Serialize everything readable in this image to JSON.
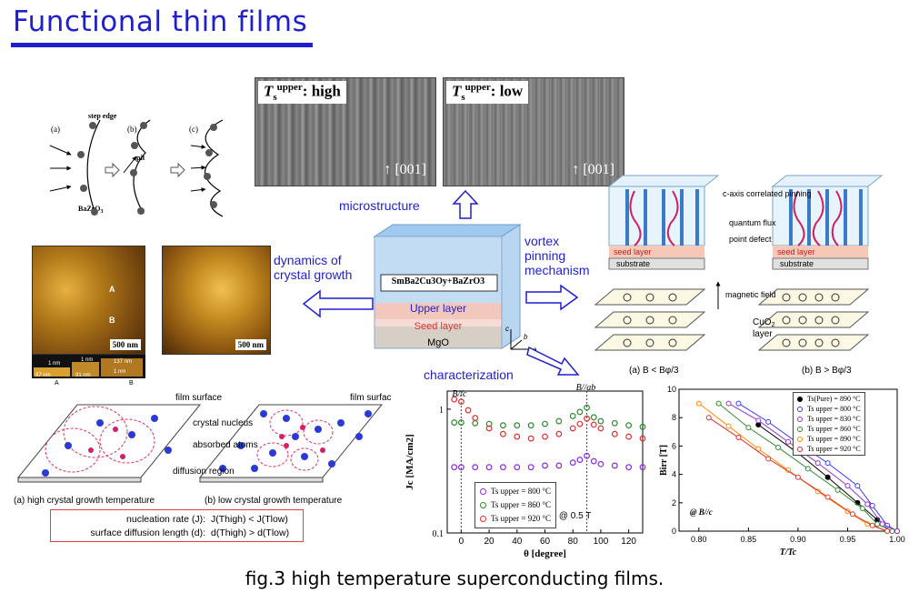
{
  "title": "Functional thin films",
  "caption": "fig.3 high temperature superconducting films.",
  "growth_sketch": {
    "labels": [
      "(a)",
      "(b)",
      "(c)"
    ],
    "step_edge": "step edge",
    "pit": "pit",
    "bzo": "BaZrO",
    "bzo_sub": "3"
  },
  "tem": {
    "left_label_main": "T",
    "left_label_sub": "s",
    "left_label_sup": "upper",
    "left_label_rest": ": high",
    "right_label_main": "T",
    "right_label_sub": "s",
    "right_label_sup": "upper",
    "right_label_rest": ": low",
    "direction": "[001]"
  },
  "arrows": {
    "microstructure": "microstructure",
    "dynamics": "dynamics of crystal growth",
    "dynamics_line1": "dynamics of",
    "dynamics_line2": "crystal growth",
    "vortex_line1": "vortex",
    "vortex_line2": "pinning",
    "vortex_line3": "mechanism",
    "characterization": "characterization"
  },
  "film_block": {
    "composition": "SmBa2Cu3Oy+BaZrO3",
    "upper": "Upper layer",
    "seed": "Seed layer",
    "substrate": "MgO",
    "axes": [
      "c",
      "b",
      "a"
    ]
  },
  "afm": {
    "scale_left": "500 nm",
    "scale_right": "500 nm",
    "pt_a": "A",
    "pt_b": "B",
    "profile": [
      "1 nm",
      "97 nm",
      "1 nm",
      "91 nm",
      "137 nm",
      "1 nm"
    ]
  },
  "vortex": {
    "c_axis": "c-axis correlated pinning",
    "quantum_flux": "quantum flux",
    "point_defect": "point defect",
    "seed_layer": "seed layer",
    "substrate": "substrate",
    "magnetic_field": "magnetic field",
    "cuo2": "CuO",
    "cuo2_sub": "2",
    "cuo2_tail": "layer",
    "sub_a": "(a) B < Bφ/3",
    "sub_b": "(b) B > Bφ/3"
  },
  "nucleation": {
    "film_surface_a": "film surface",
    "film_surface_b": "film surface",
    "crystal_nucleus": "crystal nucleus",
    "absorbed_atoms": "absorbed atoms",
    "diffusion_region": "diffusion region",
    "caption_a": "(a) high crystal growth temperature",
    "caption_b": "(b) low crystal growth temperature",
    "rate_label": "nucleation rate (J):",
    "rate_value": "J(Thigh) < J(Tlow)",
    "length_label": "surface diffusion length (d):",
    "length_value": "d(Thigh) > d(Tlow)"
  },
  "chart_data": [
    {
      "type": "scatter",
      "title": "",
      "xlabel": "θ [degree]",
      "ylabel": "Jc [MA/cm2]",
      "xlim": [
        -10,
        130
      ],
      "ylim": [
        0.1,
        1.4
      ],
      "yscale": "log",
      "x_ticks": [
        0,
        20,
        40,
        60,
        80,
        100,
        120
      ],
      "y_ticks": [
        0.1,
        1
      ],
      "annotations": [
        "B//c",
        "B//ab",
        "@ 0.5 T"
      ],
      "legend_placement": "bottom-left",
      "series": [
        {
          "name": "Ts upper = 800 °C",
          "color": "#8a2be2",
          "x": [
            -5,
            0,
            10,
            20,
            30,
            40,
            50,
            60,
            70,
            80,
            85,
            90,
            95,
            100,
            110,
            120,
            130
          ],
          "y": [
            0.34,
            0.34,
            0.34,
            0.34,
            0.34,
            0.34,
            0.34,
            0.35,
            0.35,
            0.37,
            0.39,
            0.42,
            0.38,
            0.36,
            0.35,
            0.34,
            0.34
          ]
        },
        {
          "name": "Ts upper = 860 °C",
          "color": "#2e8b2e",
          "x": [
            -5,
            0,
            10,
            20,
            30,
            40,
            50,
            60,
            70,
            80,
            85,
            90,
            95,
            100,
            110,
            120,
            130
          ],
          "y": [
            0.78,
            0.78,
            0.77,
            0.76,
            0.74,
            0.74,
            0.74,
            0.76,
            0.8,
            0.88,
            0.95,
            1.03,
            0.86,
            0.8,
            0.77,
            0.74,
            0.72
          ]
        },
        {
          "name": "Ts upper = 920 °C",
          "color": "#e03030",
          "x": [
            -5,
            0,
            5,
            10,
            20,
            30,
            40,
            50,
            60,
            70,
            80,
            85,
            90,
            95,
            100,
            110,
            120,
            130
          ],
          "y": [
            1.2,
            1.15,
            0.98,
            0.85,
            0.7,
            0.63,
            0.6,
            0.58,
            0.6,
            0.63,
            0.7,
            0.76,
            0.84,
            0.75,
            0.7,
            0.63,
            0.6,
            0.58
          ]
        }
      ]
    },
    {
      "type": "line",
      "title": "",
      "xlabel": "T/Tc",
      "ylabel": "Birr [T]",
      "xlim": [
        0.78,
        1.0
      ],
      "ylim": [
        0,
        10
      ],
      "x_ticks": [
        0.8,
        0.85,
        0.9,
        0.95,
        1.0
      ],
      "y_ticks": [
        0,
        2,
        4,
        6,
        8,
        10
      ],
      "annotations": [
        "@ B//c"
      ],
      "legend_placement": "top-right",
      "series": [
        {
          "name": "Ts(Pure) = 890 °C",
          "color": "#000000",
          "x": [
            0.86,
            0.9,
            0.93,
            0.96,
            0.98,
            1.0
          ],
          "y": [
            7.5,
            5.5,
            3.8,
            2.0,
            0.8,
            0.0
          ]
        },
        {
          "name": "Ts upper = 800 °C",
          "color": "#3a3aff",
          "x": [
            0.84,
            0.87,
            0.9,
            0.93,
            0.96,
            0.975,
            0.99,
            1.0
          ],
          "y": [
            9.0,
            7.7,
            6.2,
            4.8,
            3.2,
            1.8,
            0.4,
            0.0
          ]
        },
        {
          "name": "Ts upper = 830 °C",
          "color": "#9932cc",
          "x": [
            0.83,
            0.86,
            0.89,
            0.92,
            0.95,
            0.97,
            0.985,
            1.0
          ],
          "y": [
            9.0,
            7.8,
            6.3,
            4.8,
            3.2,
            1.9,
            0.5,
            0.0
          ]
        },
        {
          "name": "Ts upper = 860 °C",
          "color": "#2e8b2e",
          "x": [
            0.82,
            0.85,
            0.88,
            0.91,
            0.94,
            0.965,
            0.98,
            0.995
          ],
          "y": [
            9.0,
            7.3,
            5.9,
            4.4,
            2.9,
            1.6,
            0.5,
            0.0
          ]
        },
        {
          "name": "Ts upper = 890 °C",
          "color": "#ff8c00",
          "x": [
            0.8,
            0.83,
            0.86,
            0.89,
            0.92,
            0.95,
            0.97,
            0.99
          ],
          "y": [
            9.0,
            7.4,
            5.8,
            4.3,
            2.8,
            1.4,
            0.5,
            0.0
          ]
        },
        {
          "name": "Ts upper = 920 °C",
          "color": "#e03030",
          "x": [
            0.81,
            0.84,
            0.87,
            0.9,
            0.93,
            0.955,
            0.975,
            0.99
          ],
          "y": [
            8.0,
            6.6,
            5.1,
            3.8,
            2.4,
            1.2,
            0.4,
            0.0
          ]
        }
      ]
    }
  ]
}
